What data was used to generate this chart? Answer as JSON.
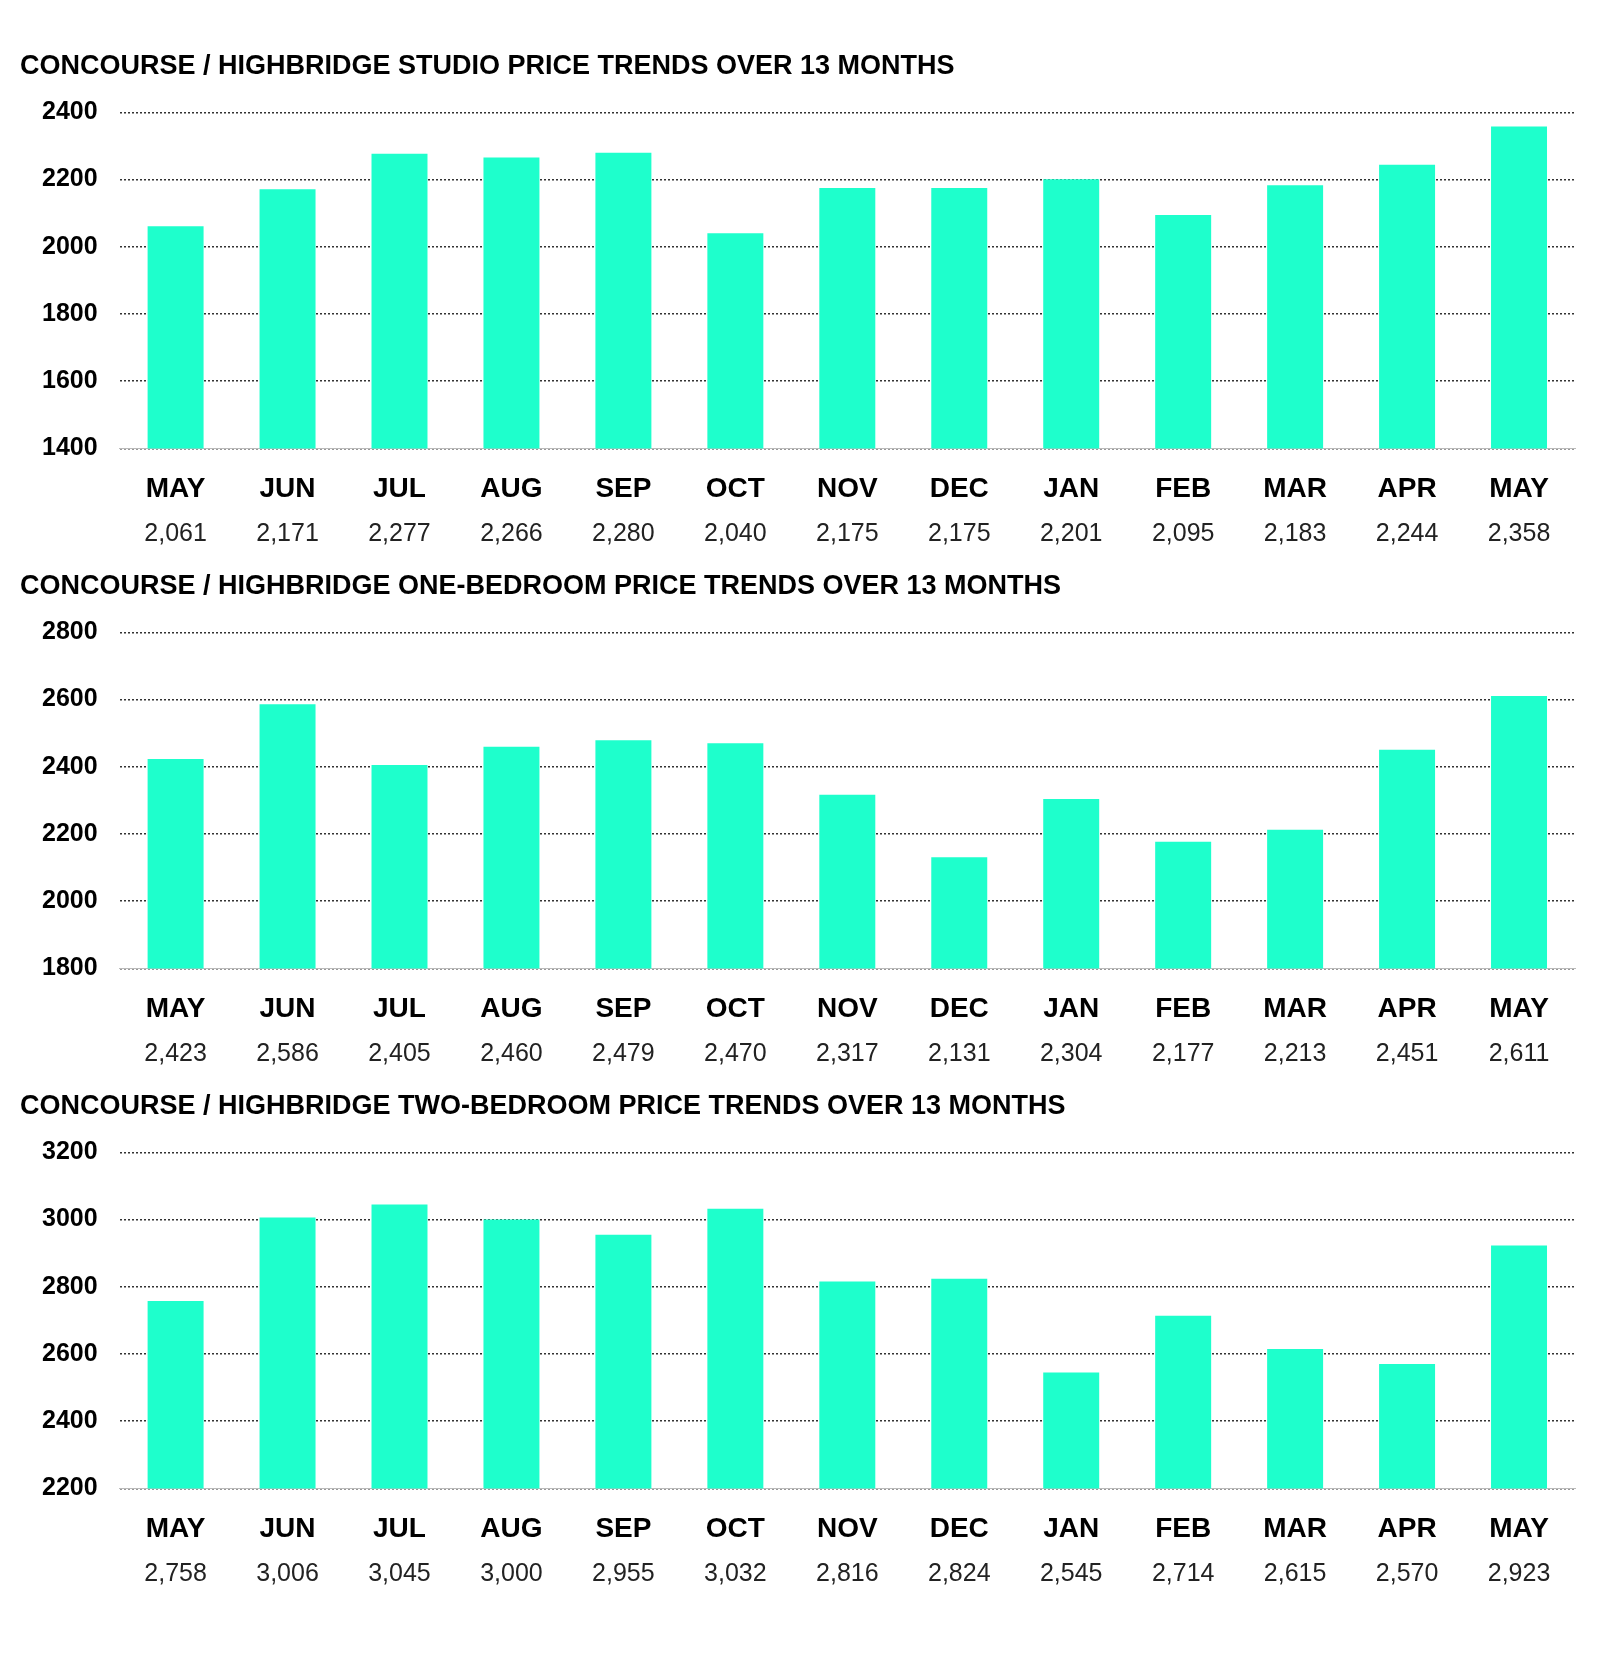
{
  "chart_data": [
    {
      "type": "bar",
      "title": "CONCOURSE / HIGHBRIDGE STUDIO PRICE TRENDS OVER 13 MONTHS",
      "categories": [
        "MAY",
        "JUN",
        "JUL",
        "AUG",
        "SEP",
        "OCT",
        "NOV",
        "DEC",
        "JAN",
        "FEB",
        "MAR",
        "APR",
        "MAY"
      ],
      "values": [
        2061,
        2171,
        2277,
        2266,
        2280,
        2040,
        2175,
        2175,
        2201,
        2095,
        2183,
        2244,
        2358
      ],
      "value_labels": [
        "2,061",
        "2,171",
        "2,277",
        "2,266",
        "2,280",
        "2,040",
        "2,175",
        "2,175",
        "2,201",
        "2,095",
        "2,183",
        "2,244",
        "2,358"
      ],
      "color": "#1effcc",
      "ylim": [
        1400,
        2400
      ],
      "yticks": [
        1400,
        1600,
        1800,
        2000,
        2200,
        2400
      ],
      "grid": "y"
    },
    {
      "type": "bar",
      "title": "CONCOURSE / HIGHBRIDGE ONE-BEDROOM PRICE TRENDS OVER 13 MONTHS",
      "categories": [
        "MAY",
        "JUN",
        "JUL",
        "AUG",
        "SEP",
        "OCT",
        "NOV",
        "DEC",
        "JAN",
        "FEB",
        "MAR",
        "APR",
        "MAY"
      ],
      "values": [
        2423,
        2586,
        2405,
        2460,
        2479,
        2470,
        2317,
        2131,
        2304,
        2177,
        2213,
        2451,
        2611
      ],
      "value_labels": [
        "2,423",
        "2,586",
        "2,405",
        "2,460",
        "2,479",
        "2,470",
        "2,317",
        "2,131",
        "2,304",
        "2,177",
        "2,213",
        "2,451",
        "2,611"
      ],
      "color": "#1effcc",
      "ylim": [
        1800,
        2800
      ],
      "yticks": [
        1800,
        2000,
        2200,
        2400,
        2600,
        2800
      ],
      "grid": "y"
    },
    {
      "type": "bar",
      "title": "CONCOURSE / HIGHBRIDGE TWO-BEDROOM PRICE TRENDS OVER 13 MONTHS",
      "categories": [
        "MAY",
        "JUN",
        "JUL",
        "AUG",
        "SEP",
        "OCT",
        "NOV",
        "DEC",
        "JAN",
        "FEB",
        "MAR",
        "APR",
        "MAY"
      ],
      "values": [
        2758,
        3006,
        3045,
        3000,
        2955,
        3032,
        2816,
        2824,
        2545,
        2714,
        2615,
        2570,
        2923
      ],
      "value_labels": [
        "2,758",
        "3,006",
        "3,045",
        "3,000",
        "2,955",
        "3,032",
        "2,816",
        "2,824",
        "2,545",
        "2,714",
        "2,615",
        "2,570",
        "2,923"
      ],
      "color": "#1effcc",
      "ylim": [
        2200,
        3200
      ],
      "yticks": [
        2200,
        2400,
        2600,
        2800,
        3000,
        3200
      ],
      "grid": "y"
    }
  ]
}
